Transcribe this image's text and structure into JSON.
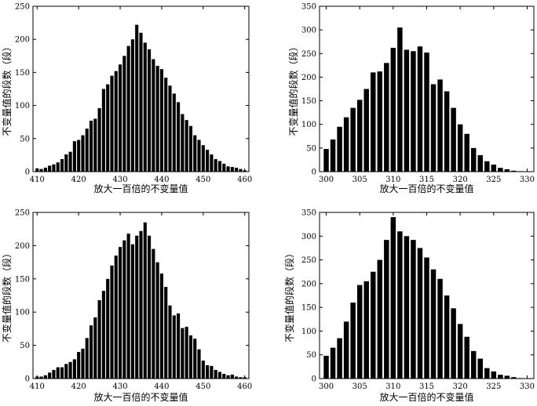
{
  "chart_data": [
    {
      "type": "bar",
      "position": "top-left",
      "xlabel": "放大一百倍的不变量值",
      "ylabel": "不变量值的段数（段）",
      "xlim": [
        409,
        461
      ],
      "ylim": [
        0,
        250
      ],
      "xticks": [
        410,
        420,
        430,
        440,
        450,
        460
      ],
      "yticks": [
        0,
        50,
        100,
        150,
        200,
        250
      ],
      "grid": false,
      "x": [
        410,
        411,
        412,
        413,
        414,
        415,
        416,
        417,
        418,
        419,
        420,
        421,
        422,
        423,
        424,
        425,
        426,
        427,
        428,
        429,
        430,
        431,
        432,
        433,
        434,
        435,
        436,
        437,
        438,
        439,
        440,
        441,
        442,
        443,
        444,
        445,
        446,
        447,
        448,
        449,
        450,
        451,
        452,
        453,
        454,
        455,
        456,
        457,
        458,
        459,
        460
      ],
      "values": [
        5,
        4,
        6,
        9,
        11,
        14,
        19,
        26,
        30,
        46,
        48,
        55,
        65,
        77,
        80,
        96,
        125,
        132,
        145,
        152,
        162,
        175,
        190,
        200,
        222,
        210,
        195,
        185,
        170,
        160,
        155,
        142,
        130,
        118,
        105,
        87,
        78,
        69,
        55,
        48,
        40,
        33,
        26,
        19,
        16,
        12,
        8,
        7,
        6,
        4,
        2
      ]
    },
    {
      "type": "bar",
      "position": "top-right",
      "xlabel": "放大一百倍的不变量值",
      "ylabel": "不变量值的段数（段）",
      "xlim": [
        299,
        331
      ],
      "ylim": [
        0,
        350
      ],
      "xticks": [
        300,
        305,
        310,
        315,
        320,
        325,
        330
      ],
      "yticks": [
        0,
        50,
        100,
        150,
        200,
        250,
        300,
        350
      ],
      "grid": false,
      "x": [
        300,
        301,
        302,
        303,
        304,
        305,
        306,
        307,
        308,
        309,
        310,
        311,
        312,
        313,
        314,
        315,
        316,
        317,
        318,
        319,
        320,
        321,
        322,
        323,
        324,
        325,
        326,
        327,
        328,
        329
      ],
      "values": [
        48,
        68,
        95,
        115,
        135,
        152,
        175,
        210,
        212,
        230,
        262,
        305,
        258,
        255,
        265,
        252,
        185,
        195,
        170,
        135,
        100,
        80,
        50,
        35,
        22,
        15,
        8,
        5,
        2,
        1
      ]
    },
    {
      "type": "bar",
      "position": "bottom-left",
      "xlabel": "放大一百倍的不变量值",
      "ylabel": "不变量值的段数（段）",
      "xlim": [
        409,
        461
      ],
      "ylim": [
        0,
        250
      ],
      "xticks": [
        410,
        420,
        430,
        440,
        450,
        460
      ],
      "yticks": [
        0,
        50,
        100,
        150,
        200,
        250
      ],
      "grid": false,
      "x": [
        410,
        411,
        412,
        413,
        414,
        415,
        416,
        417,
        418,
        419,
        420,
        421,
        422,
        423,
        424,
        425,
        426,
        427,
        428,
        429,
        430,
        431,
        432,
        433,
        434,
        435,
        436,
        437,
        438,
        439,
        440,
        441,
        442,
        443,
        444,
        445,
        446,
        447,
        448,
        449,
        450,
        451,
        452,
        453,
        454,
        455,
        456,
        457,
        458,
        459,
        460
      ],
      "values": [
        3,
        3,
        5,
        9,
        13,
        17,
        17,
        22,
        25,
        29,
        40,
        45,
        61,
        80,
        92,
        118,
        132,
        150,
        170,
        185,
        198,
        208,
        218,
        202,
        215,
        222,
        235,
        215,
        195,
        175,
        158,
        138,
        110,
        95,
        98,
        76,
        78,
        65,
        60,
        44,
        27,
        20,
        19,
        13,
        10,
        7,
        5,
        6,
        3,
        2,
        2
      ]
    },
    {
      "type": "bar",
      "position": "bottom-right",
      "xlabel": "放大一百倍的不变量值",
      "ylabel": "不变量值的段数（段）",
      "xlim": [
        299,
        331
      ],
      "ylim": [
        0,
        350
      ],
      "xticks": [
        300,
        305,
        310,
        315,
        320,
        325,
        330
      ],
      "yticks": [
        0,
        50,
        100,
        150,
        200,
        250,
        300,
        350
      ],
      "grid": false,
      "x": [
        300,
        301,
        302,
        303,
        304,
        305,
        306,
        307,
        308,
        309,
        310,
        311,
        312,
        313,
        314,
        315,
        316,
        317,
        318,
        319,
        320,
        321,
        322,
        323,
        324,
        325,
        326,
        327,
        328,
        329
      ],
      "values": [
        48,
        65,
        85,
        120,
        160,
        197,
        205,
        225,
        250,
        292,
        340,
        310,
        300,
        292,
        275,
        255,
        230,
        210,
        175,
        148,
        115,
        88,
        58,
        42,
        22,
        15,
        8,
        6,
        3,
        1
      ]
    }
  ]
}
